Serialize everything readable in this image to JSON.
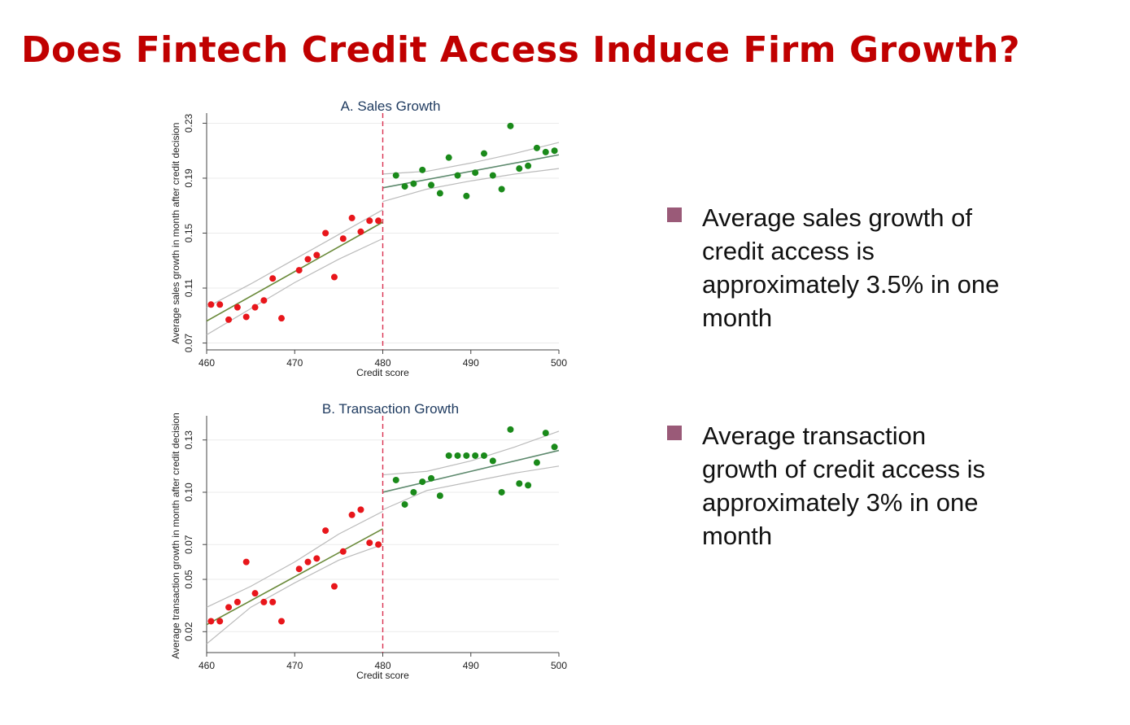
{
  "slide": {
    "title": "Does Fintech Credit Access Induce Firm Growth?",
    "bullets": [
      "Average sales growth of credit access is approximately 3.5% in one month",
      "Average transaction growth of credit access is approximately 3% in one month"
    ],
    "bullet_color": "#9a5a78",
    "title_color": "#c00000"
  },
  "chart_data": [
    {
      "type": "scatter",
      "title": "A. Sales Growth",
      "xlabel": "Credit score",
      "ylabel": "Average sales growth in month after credit decision",
      "xlim": [
        460,
        500
      ],
      "ylim": [
        0.065,
        0.235
      ],
      "xticks": [
        460,
        470,
        480,
        490,
        500
      ],
      "yticks": [
        0.07,
        0.11,
        0.15,
        0.19,
        0.23
      ],
      "ytick_labels": [
        "0.07",
        "0.11",
        "0.15",
        "0.19",
        "0.23"
      ],
      "cutoff": 480,
      "colors": {
        "left": "#e8161b",
        "right": "#1a8a1a",
        "fit_left": "#6a8a3a",
        "fit_right": "#5e8a6e",
        "ci": "#bbbbbb",
        "cutoff": "#d9304f"
      },
      "series": [
        {
          "x": [
            460.5,
            461.5,
            462.5,
            463.5,
            464.5,
            465.5,
            466.5,
            467.5,
            468.5,
            470.5,
            471.5,
            472.5,
            473.5,
            474.5,
            475.5,
            476.5,
            477.5,
            478.5,
            479.5
          ],
          "y": [
            0.098,
            0.098,
            0.087,
            0.096,
            0.089,
            0.096,
            0.101,
            0.117,
            0.088,
            0.123,
            0.131,
            0.134,
            0.15,
            0.118,
            0.146,
            0.161,
            0.151,
            0.159,
            0.159
          ]
        },
        {
          "x": [
            481.5,
            482.5,
            483.5,
            484.5,
            485.5,
            486.5,
            487.5,
            488.5,
            489.5,
            490.5,
            491.5,
            492.5,
            493.5,
            494.5,
            495.5,
            496.5,
            497.5,
            498.5,
            499.5
          ],
          "y": [
            0.192,
            0.184,
            0.186,
            0.196,
            0.185,
            0.179,
            0.205,
            0.192,
            0.177,
            0.194,
            0.208,
            0.192,
            0.182,
            0.228,
            0.197,
            0.199,
            0.212,
            0.209,
            0.21
          ]
        }
      ],
      "fit": [
        {
          "x": [
            460,
            480
          ],
          "y": [
            0.086,
            0.158
          ]
        },
        {
          "x": [
            480,
            500
          ],
          "y": [
            0.183,
            0.207
          ]
        }
      ],
      "ci": [
        {
          "x": [
            460,
            465,
            470,
            475,
            480
          ],
          "upper": [
            0.096,
            0.113,
            0.131,
            0.149,
            0.167
          ],
          "lower": [
            0.076,
            0.095,
            0.114,
            0.131,
            0.146
          ]
        },
        {
          "x": [
            480,
            485,
            490,
            495,
            500
          ],
          "upper": [
            0.193,
            0.195,
            0.201,
            0.208,
            0.216
          ],
          "lower": [
            0.173,
            0.182,
            0.188,
            0.193,
            0.197
          ]
        }
      ]
    },
    {
      "type": "scatter",
      "title": "B. Transaction Growth",
      "xlabel": "Credit score",
      "ylabel": "Average transaction growth in month after credit decision",
      "xlim": [
        460,
        500
      ],
      "ylim": [
        0.008,
        0.142
      ],
      "xticks": [
        460,
        470,
        480,
        490,
        500
      ],
      "yticks": [
        0.02,
        0.05,
        0.07,
        0.1,
        0.13
      ],
      "ytick_labels": [
        "0.02",
        "0.05",
        "0.07",
        "0.10",
        "0.13"
      ],
      "cutoff": 480,
      "colors": {
        "left": "#e8161b",
        "right": "#1a8a1a",
        "fit_left": "#6a8a3a",
        "fit_right": "#5e8a6e",
        "ci": "#bbbbbb",
        "cutoff": "#d9304f"
      },
      "series": [
        {
          "x": [
            460.5,
            461.5,
            462.5,
            463.5,
            464.5,
            465.5,
            466.5,
            467.5,
            468.5,
            470.5,
            471.5,
            472.5,
            473.5,
            474.5,
            475.5,
            476.5,
            477.5,
            478.5,
            479.5
          ],
          "y": [
            0.026,
            0.026,
            0.034,
            0.037,
            0.06,
            0.042,
            0.037,
            0.037,
            0.026,
            0.056,
            0.06,
            0.062,
            0.078,
            0.046,
            0.066,
            0.087,
            0.09,
            0.071,
            0.07
          ]
        },
        {
          "x": [
            481.5,
            482.5,
            483.5,
            484.5,
            485.5,
            486.5,
            487.5,
            488.5,
            489.5,
            490.5,
            491.5,
            492.5,
            493.5,
            494.5,
            495.5,
            496.5,
            497.5,
            498.5,
            499.5
          ],
          "y": [
            0.107,
            0.093,
            0.1,
            0.106,
            0.108,
            0.098,
            0.121,
            0.121,
            0.121,
            0.121,
            0.121,
            0.118,
            0.1,
            0.136,
            0.105,
            0.104,
            0.117,
            0.134,
            0.126
          ]
        }
      ],
      "fit": [
        {
          "x": [
            460,
            480
          ],
          "y": [
            0.024,
            0.079
          ]
        },
        {
          "x": [
            480,
            500
          ],
          "y": [
            0.1,
            0.124
          ]
        }
      ],
      "ci": [
        {
          "x": [
            460,
            465,
            470,
            475,
            480
          ],
          "upper": [
            0.034,
            0.046,
            0.06,
            0.076,
            0.089
          ],
          "lower": [
            0.013,
            0.034,
            0.048,
            0.061,
            0.07
          ]
        },
        {
          "x": [
            480,
            485,
            490,
            495,
            500
          ],
          "upper": [
            0.11,
            0.112,
            0.118,
            0.126,
            0.135
          ],
          "lower": [
            0.09,
            0.101,
            0.106,
            0.111,
            0.115
          ]
        }
      ]
    }
  ]
}
